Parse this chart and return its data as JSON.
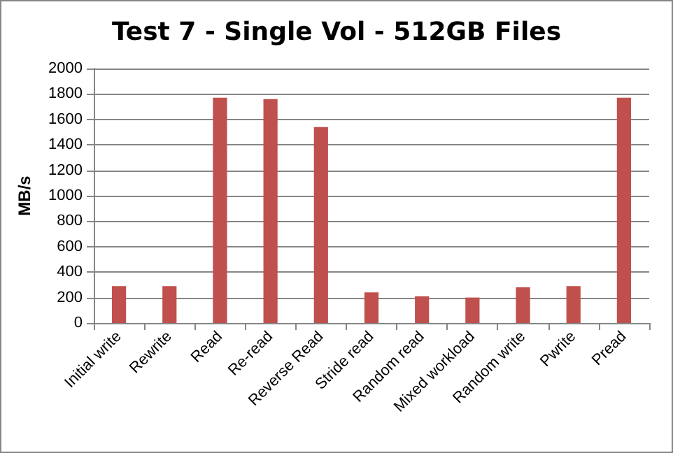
{
  "chart_data": {
    "type": "bar",
    "title": "Test 7 - Single Vol - 512GB Files",
    "ylabel": "MB/s",
    "categories": [
      "Initial write",
      "Rewrite",
      "Read",
      "Re-read",
      "Reverse Read",
      "Stride read",
      "Random read",
      "Mixed workload",
      "Random write",
      "Pwrite",
      "Pread"
    ],
    "values": [
      290,
      290,
      1770,
      1760,
      1540,
      240,
      210,
      200,
      280,
      290,
      1770
    ],
    "color": "#c0504d",
    "ylim": [
      0,
      2000
    ],
    "yticks": [
      0,
      200,
      400,
      600,
      800,
      1000,
      1200,
      1400,
      1600,
      1800,
      2000
    ],
    "grid": "y"
  }
}
